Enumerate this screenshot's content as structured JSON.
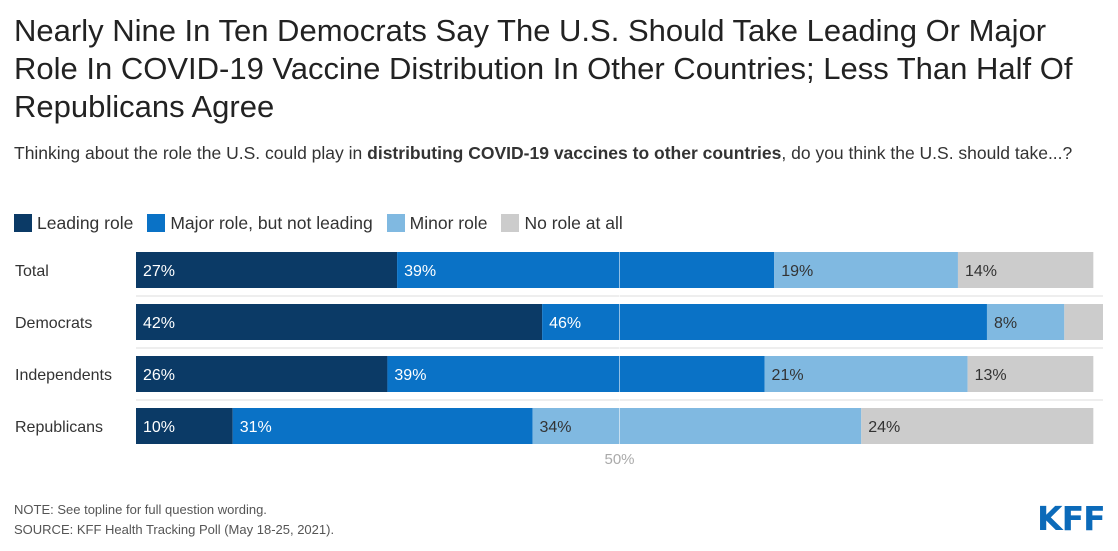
{
  "title": "Nearly Nine In Ten Democrats Say The U.S. Should Take Leading Or Major Role In COVID-19 Vaccine Distribution In Other Countries; Less Than Half Of Republicans Agree",
  "subtitle": {
    "before": "Thinking about the role the U.S. could play in ",
    "bold": "distributing COVID-19 vaccines to other countries",
    "after": ", do you think the U.S. should take...?"
  },
  "colors": {
    "leading": "#0b3a66",
    "major": "#0a72c6",
    "minor": "#80b9e1",
    "none": "#cccccc"
  },
  "chart_data": {
    "type": "bar",
    "orientation": "horizontal",
    "stacked": true,
    "categories": [
      "Total",
      "Democrats",
      "Independents",
      "Republicans"
    ],
    "series": [
      {
        "name": "Leading role",
        "values": [
          27,
          42,
          26,
          10
        ]
      },
      {
        "name": "Major role, but not leading",
        "values": [
          39,
          46,
          39,
          31
        ]
      },
      {
        "name": "Minor role",
        "values": [
          19,
          8,
          21,
          34
        ]
      },
      {
        "name": "No role at all",
        "values": [
          14,
          4,
          13,
          24
        ]
      }
    ],
    "value_labels": [
      [
        "27%",
        "39%",
        "19%",
        "14%"
      ],
      [
        "42%",
        "46%",
        "8%",
        ""
      ],
      [
        "26%",
        "39%",
        "21%",
        "13%"
      ],
      [
        "10%",
        "31%",
        "34%",
        "24%"
      ]
    ],
    "xlim": [
      0,
      100
    ],
    "reference_line": {
      "value": 50,
      "label": "50%"
    },
    "legend": "top-left"
  },
  "footer": {
    "note": "NOTE: See topline for full question wording.",
    "source": "SOURCE: KFF Health Tracking Poll (May 18-25, 2021).",
    "logo": "KFF"
  }
}
